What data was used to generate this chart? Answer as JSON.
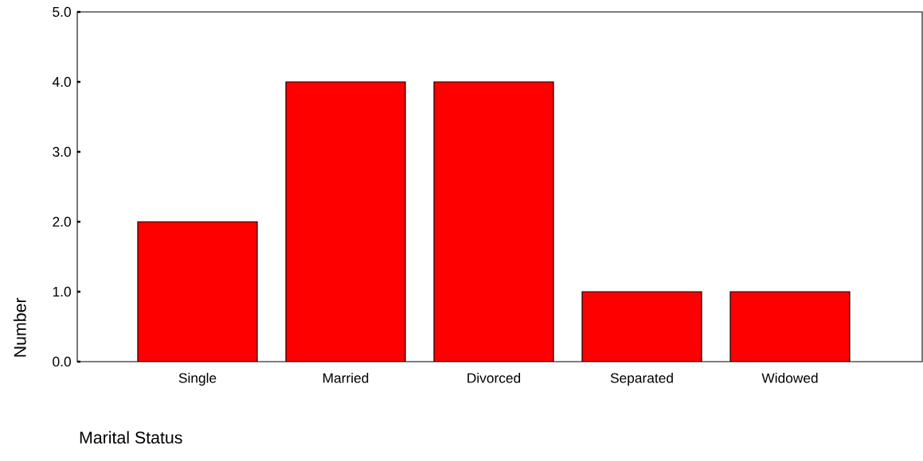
{
  "chart_data": {
    "type": "bar",
    "xlabel": "Marital Status",
    "ylabel": "Number",
    "categories": [
      "Single",
      "Married",
      "Divorced",
      "Separated",
      "Widowed"
    ],
    "values": [
      2,
      4,
      4,
      1,
      1
    ],
    "color": "#ff0000",
    "ylim": [
      0,
      5
    ],
    "yticks": [
      {
        "value": 0,
        "label": "0.0"
      },
      {
        "value": 1,
        "label": "1.0"
      },
      {
        "value": 2,
        "label": "2.0"
      },
      {
        "value": 3,
        "label": "3.0"
      },
      {
        "value": 4,
        "label": "4.0"
      },
      {
        "value": 5,
        "label": "5.0"
      }
    ],
    "grid": false
  }
}
